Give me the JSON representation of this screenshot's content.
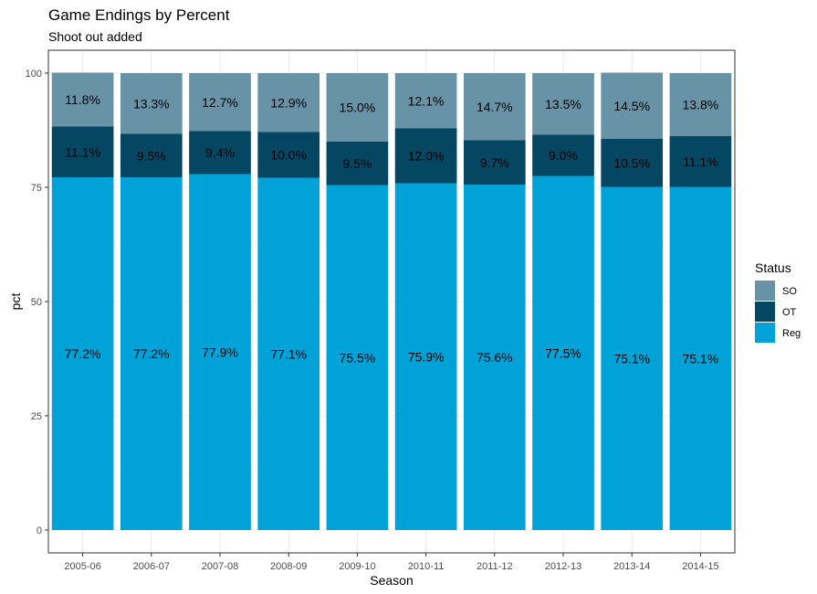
{
  "chart_data": {
    "type": "bar",
    "stacked": true,
    "title": "Game Endings by Percent",
    "subtitle": "Shoot out added",
    "xlabel": "Season",
    "ylabel": "pct",
    "ylim": [
      0,
      100
    ],
    "yticks": [
      0,
      25,
      50,
      75,
      100
    ],
    "grid": true,
    "legend_position": "right",
    "legend_title": "Status",
    "categories": [
      "2005-06",
      "2006-07",
      "2007-08",
      "2008-09",
      "2009-10",
      "2010-11",
      "2011-12",
      "2012-13",
      "2013-14",
      "2014-15"
    ],
    "series": [
      {
        "name": "Reg",
        "color": "#00a2d8",
        "values": [
          77.2,
          77.2,
          77.9,
          77.1,
          75.5,
          75.9,
          75.6,
          77.5,
          75.1,
          75.1
        ],
        "labels": [
          "77.2%",
          "77.2%",
          "77.9%",
          "77.1%",
          "75.5%",
          "75.9%",
          "75.6%",
          "77.5%",
          "75.1%",
          "75.1%"
        ]
      },
      {
        "name": "OT",
        "color": "#054662",
        "values": [
          11.1,
          9.5,
          9.4,
          10.0,
          9.5,
          12.0,
          9.7,
          9.0,
          10.5,
          11.1
        ],
        "labels": [
          "11.1%",
          "9.5%",
          "9.4%",
          "10.0%",
          "9.5%",
          "12.0%",
          "9.7%",
          "9.0%",
          "10.5%",
          "11.1%"
        ]
      },
      {
        "name": "SO",
        "color": "#6892a6",
        "values": [
          11.8,
          13.3,
          12.7,
          12.9,
          15.0,
          12.1,
          14.7,
          13.5,
          14.5,
          13.8
        ],
        "labels": [
          "11.8%",
          "13.3%",
          "12.7%",
          "12.9%",
          "15.0%",
          "12.1%",
          "14.7%",
          "13.5%",
          "14.5%",
          "13.8%"
        ]
      }
    ],
    "legend_order": [
      "SO",
      "OT",
      "Reg"
    ]
  }
}
